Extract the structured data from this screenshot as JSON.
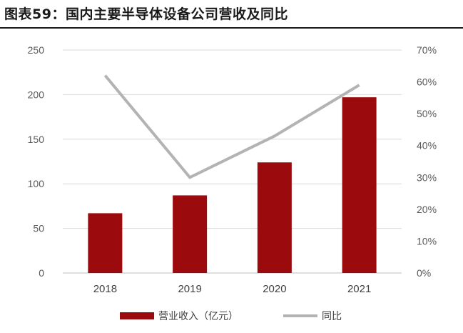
{
  "title": "图表59：国内主要半导体设备公司营收及同比",
  "colors": {
    "bar": "#9b0a0c",
    "line": "#b3b3b3",
    "grid": "#d9d9d9",
    "axis": "#bfbfbf"
  },
  "chart_data": {
    "type": "bar+line",
    "title": "图表59：国内主要半导体设备公司营收及同比",
    "categories": [
      "2018",
      "2019",
      "2020",
      "2021"
    ],
    "series": [
      {
        "name": "营业收入（亿元）",
        "type": "bar",
        "axis": "left",
        "values": [
          67,
          87,
          124,
          197
        ]
      },
      {
        "name": "同比",
        "type": "line",
        "axis": "right",
        "values": [
          0.62,
          0.3,
          0.43,
          0.59
        ]
      }
    ],
    "y_left": {
      "min": 0,
      "max": 250,
      "ticks": [
        0,
        50,
        100,
        150,
        200,
        250
      ]
    },
    "y_right": {
      "min": 0,
      "max": 0.7,
      "ticks": [
        0,
        0.1,
        0.2,
        0.3,
        0.4,
        0.5,
        0.6,
        0.7
      ],
      "tick_labels": [
        "0%",
        "10%",
        "20%",
        "30%",
        "40%",
        "50%",
        "60%",
        "70%"
      ]
    },
    "grid": true,
    "legend": "bottom"
  }
}
